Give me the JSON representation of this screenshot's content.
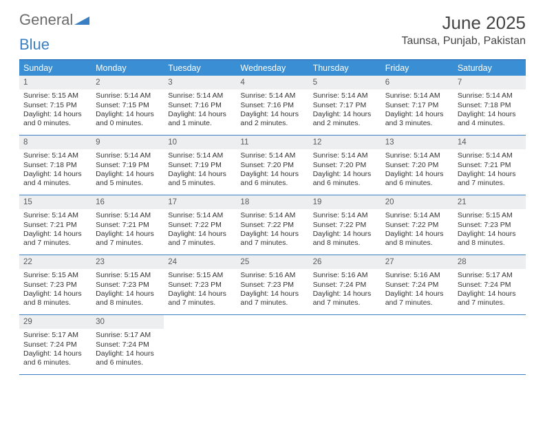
{
  "logo": {
    "general": "General",
    "blue": "Blue"
  },
  "title": "June 2025",
  "location": "Taunsa, Punjab, Pakistan",
  "colors": {
    "header_bg": "#3a8fd4",
    "border": "#3a7fc4",
    "daynum_bg": "#eceef0",
    "text": "#333333"
  },
  "weekdays": [
    "Sunday",
    "Monday",
    "Tuesday",
    "Wednesday",
    "Thursday",
    "Friday",
    "Saturday"
  ],
  "weeks": [
    [
      {
        "n": "1",
        "sr": "Sunrise: 5:15 AM",
        "ss": "Sunset: 7:15 PM",
        "d1": "Daylight: 14 hours",
        "d2": "and 0 minutes."
      },
      {
        "n": "2",
        "sr": "Sunrise: 5:14 AM",
        "ss": "Sunset: 7:15 PM",
        "d1": "Daylight: 14 hours",
        "d2": "and 0 minutes."
      },
      {
        "n": "3",
        "sr": "Sunrise: 5:14 AM",
        "ss": "Sunset: 7:16 PM",
        "d1": "Daylight: 14 hours",
        "d2": "and 1 minute."
      },
      {
        "n": "4",
        "sr": "Sunrise: 5:14 AM",
        "ss": "Sunset: 7:16 PM",
        "d1": "Daylight: 14 hours",
        "d2": "and 2 minutes."
      },
      {
        "n": "5",
        "sr": "Sunrise: 5:14 AM",
        "ss": "Sunset: 7:17 PM",
        "d1": "Daylight: 14 hours",
        "d2": "and 2 minutes."
      },
      {
        "n": "6",
        "sr": "Sunrise: 5:14 AM",
        "ss": "Sunset: 7:17 PM",
        "d1": "Daylight: 14 hours",
        "d2": "and 3 minutes."
      },
      {
        "n": "7",
        "sr": "Sunrise: 5:14 AM",
        "ss": "Sunset: 7:18 PM",
        "d1": "Daylight: 14 hours",
        "d2": "and 4 minutes."
      }
    ],
    [
      {
        "n": "8",
        "sr": "Sunrise: 5:14 AM",
        "ss": "Sunset: 7:18 PM",
        "d1": "Daylight: 14 hours",
        "d2": "and 4 minutes."
      },
      {
        "n": "9",
        "sr": "Sunrise: 5:14 AM",
        "ss": "Sunset: 7:19 PM",
        "d1": "Daylight: 14 hours",
        "d2": "and 5 minutes."
      },
      {
        "n": "10",
        "sr": "Sunrise: 5:14 AM",
        "ss": "Sunset: 7:19 PM",
        "d1": "Daylight: 14 hours",
        "d2": "and 5 minutes."
      },
      {
        "n": "11",
        "sr": "Sunrise: 5:14 AM",
        "ss": "Sunset: 7:20 PM",
        "d1": "Daylight: 14 hours",
        "d2": "and 6 minutes."
      },
      {
        "n": "12",
        "sr": "Sunrise: 5:14 AM",
        "ss": "Sunset: 7:20 PM",
        "d1": "Daylight: 14 hours",
        "d2": "and 6 minutes."
      },
      {
        "n": "13",
        "sr": "Sunrise: 5:14 AM",
        "ss": "Sunset: 7:20 PM",
        "d1": "Daylight: 14 hours",
        "d2": "and 6 minutes."
      },
      {
        "n": "14",
        "sr": "Sunrise: 5:14 AM",
        "ss": "Sunset: 7:21 PM",
        "d1": "Daylight: 14 hours",
        "d2": "and 7 minutes."
      }
    ],
    [
      {
        "n": "15",
        "sr": "Sunrise: 5:14 AM",
        "ss": "Sunset: 7:21 PM",
        "d1": "Daylight: 14 hours",
        "d2": "and 7 minutes."
      },
      {
        "n": "16",
        "sr": "Sunrise: 5:14 AM",
        "ss": "Sunset: 7:21 PM",
        "d1": "Daylight: 14 hours",
        "d2": "and 7 minutes."
      },
      {
        "n": "17",
        "sr": "Sunrise: 5:14 AM",
        "ss": "Sunset: 7:22 PM",
        "d1": "Daylight: 14 hours",
        "d2": "and 7 minutes."
      },
      {
        "n": "18",
        "sr": "Sunrise: 5:14 AM",
        "ss": "Sunset: 7:22 PM",
        "d1": "Daylight: 14 hours",
        "d2": "and 7 minutes."
      },
      {
        "n": "19",
        "sr": "Sunrise: 5:14 AM",
        "ss": "Sunset: 7:22 PM",
        "d1": "Daylight: 14 hours",
        "d2": "and 8 minutes."
      },
      {
        "n": "20",
        "sr": "Sunrise: 5:14 AM",
        "ss": "Sunset: 7:22 PM",
        "d1": "Daylight: 14 hours",
        "d2": "and 8 minutes."
      },
      {
        "n": "21",
        "sr": "Sunrise: 5:15 AM",
        "ss": "Sunset: 7:23 PM",
        "d1": "Daylight: 14 hours",
        "d2": "and 8 minutes."
      }
    ],
    [
      {
        "n": "22",
        "sr": "Sunrise: 5:15 AM",
        "ss": "Sunset: 7:23 PM",
        "d1": "Daylight: 14 hours",
        "d2": "and 8 minutes."
      },
      {
        "n": "23",
        "sr": "Sunrise: 5:15 AM",
        "ss": "Sunset: 7:23 PM",
        "d1": "Daylight: 14 hours",
        "d2": "and 8 minutes."
      },
      {
        "n": "24",
        "sr": "Sunrise: 5:15 AM",
        "ss": "Sunset: 7:23 PM",
        "d1": "Daylight: 14 hours",
        "d2": "and 7 minutes."
      },
      {
        "n": "25",
        "sr": "Sunrise: 5:16 AM",
        "ss": "Sunset: 7:23 PM",
        "d1": "Daylight: 14 hours",
        "d2": "and 7 minutes."
      },
      {
        "n": "26",
        "sr": "Sunrise: 5:16 AM",
        "ss": "Sunset: 7:24 PM",
        "d1": "Daylight: 14 hours",
        "d2": "and 7 minutes."
      },
      {
        "n": "27",
        "sr": "Sunrise: 5:16 AM",
        "ss": "Sunset: 7:24 PM",
        "d1": "Daylight: 14 hours",
        "d2": "and 7 minutes."
      },
      {
        "n": "28",
        "sr": "Sunrise: 5:17 AM",
        "ss": "Sunset: 7:24 PM",
        "d1": "Daylight: 14 hours",
        "d2": "and 7 minutes."
      }
    ],
    [
      {
        "n": "29",
        "sr": "Sunrise: 5:17 AM",
        "ss": "Sunset: 7:24 PM",
        "d1": "Daylight: 14 hours",
        "d2": "and 6 minutes."
      },
      {
        "n": "30",
        "sr": "Sunrise: 5:17 AM",
        "ss": "Sunset: 7:24 PM",
        "d1": "Daylight: 14 hours",
        "d2": "and 6 minutes."
      },
      null,
      null,
      null,
      null,
      null
    ]
  ]
}
